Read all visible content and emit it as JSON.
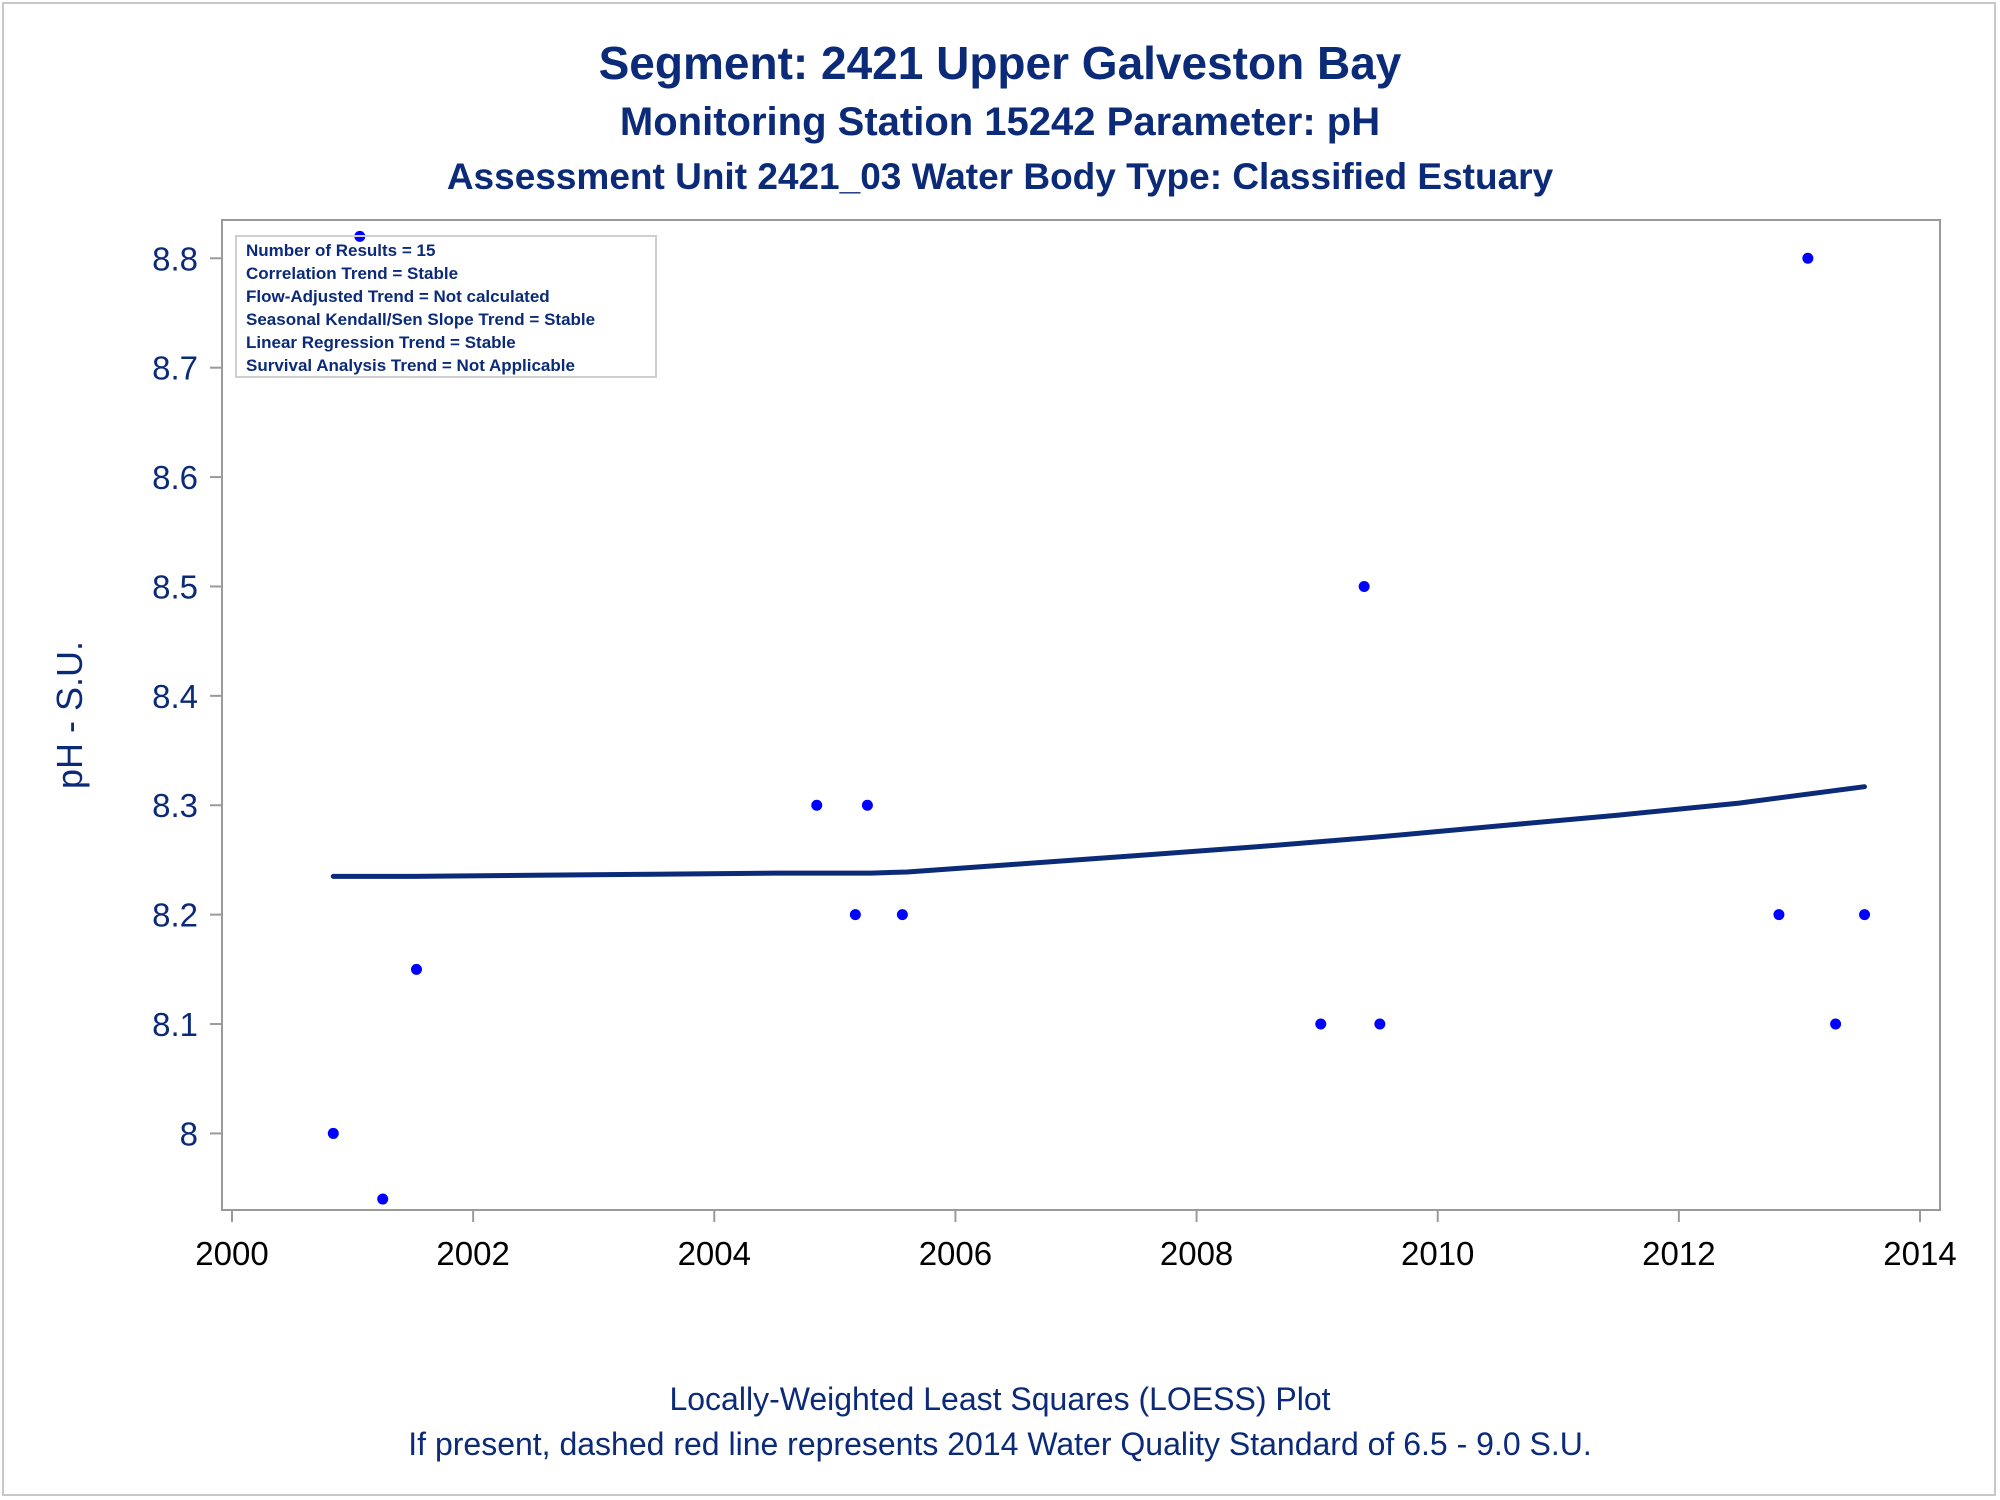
{
  "titles": {
    "line1": "Segment: 2421  Upper Galveston Bay",
    "line2": "Monitoring Station 15242 Parameter: pH",
    "line3": "Assessment Unit 2421_03   Water Body Type: Classified Estuary"
  },
  "footnotes": {
    "line1": "Locally-Weighted Least Squares (LOESS) Plot",
    "line2": "If present, dashed red line represents 2014 Water Quality Standard of 6.5 - 9.0 S.U."
  },
  "inset": {
    "lines": [
      "Number of Results = 15",
      "Correlation Trend = Stable",
      "Flow-Adjusted Trend = Not calculated",
      "Seasonal Kendall/Sen Slope Trend = Stable",
      "Linear Regression Trend = Stable",
      "Survival Analysis Trend = Not Applicable"
    ]
  },
  "colors": {
    "text": "#0b2a78",
    "points": "#0000ff",
    "loess_line": "#0b2a78",
    "frame": "#9a9a9a"
  },
  "chart_data": {
    "type": "scatter",
    "xlabel": "",
    "ylabel": "pH - S.U.",
    "xlim": [
      2000,
      2014
    ],
    "ylim": [
      7.93,
      8.835
    ],
    "x_ticks": [
      2000,
      2002,
      2004,
      2006,
      2008,
      2010,
      2012,
      2014
    ],
    "y_ticks": [
      8,
      8.1,
      8.2,
      8.3,
      8.4,
      8.5,
      8.6,
      8.7,
      8.8
    ],
    "y_tick_labels": [
      "8",
      "8.1",
      "8.2",
      "8.3",
      "8.4",
      "8.5",
      "8.6",
      "8.7",
      "8.8"
    ],
    "grid": false,
    "series": [
      {
        "kind": "points",
        "x": [
          2000.84,
          2001.06,
          2001.25,
          2001.53,
          2004.85,
          2005.17,
          2005.27,
          2005.56,
          2009.03,
          2009.39,
          2009.52,
          2012.83,
          2013.07,
          2013.3,
          2013.54
        ],
        "y": [
          8.0,
          8.82,
          7.94,
          8.15,
          8.3,
          8.2,
          8.3,
          8.2,
          8.1,
          8.5,
          8.1,
          8.2,
          8.8,
          8.1,
          8.2
        ]
      },
      {
        "kind": "loess",
        "x": [
          2000.84,
          2001.5,
          2002.5,
          2003.5,
          2004.5,
          2005.3,
          2005.6,
          2006.5,
          2007.5,
          2008.5,
          2009.5,
          2010.5,
          2011.5,
          2012.5,
          2013.54
        ],
        "y": [
          8.235,
          8.235,
          8.236,
          8.237,
          8.238,
          8.238,
          8.239,
          8.246,
          8.254,
          8.262,
          8.271,
          8.281,
          8.291,
          8.302,
          8.317
        ]
      }
    ]
  }
}
